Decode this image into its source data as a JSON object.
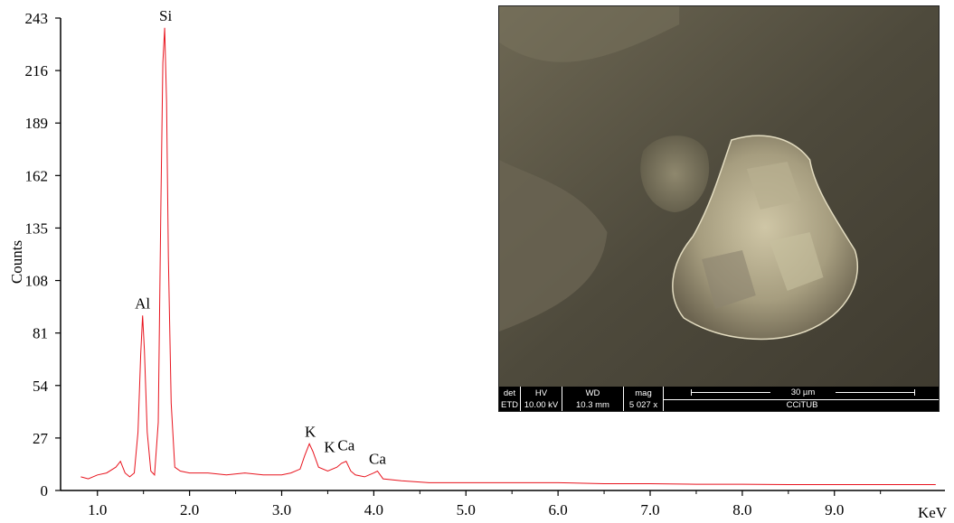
{
  "chart_data": {
    "type": "line",
    "title": "",
    "xlabel": "KeV",
    "ylabel": "Counts",
    "xlim": [
      0.6,
      10.2
    ],
    "ylim": [
      0,
      243
    ],
    "x_ticks": [
      1.0,
      2.0,
      3.0,
      4.0,
      5.0,
      6.0,
      7.0,
      8.0,
      9.0
    ],
    "x_tick_labels": [
      "1.0",
      "2.0",
      "3.0",
      "4.0",
      "5.0",
      "6.0",
      "7.0",
      "8.0",
      "9.0"
    ],
    "y_ticks": [
      0,
      27,
      54,
      81,
      108,
      135,
      162,
      189,
      216,
      243
    ],
    "y_tick_labels": [
      "0",
      "27",
      "54",
      "81",
      "108",
      "135",
      "162",
      "189",
      "216",
      "243"
    ],
    "grid": false,
    "series_color": "#e8141e",
    "series": [
      {
        "x": [
          0.82,
          0.9,
          1.0,
          1.1,
          1.2,
          1.25,
          1.3,
          1.35,
          1.4,
          1.44,
          1.47,
          1.49,
          1.51,
          1.54,
          1.58,
          1.62,
          1.66,
          1.69,
          1.71,
          1.73,
          1.75,
          1.77,
          1.8,
          1.84,
          1.9,
          2.0,
          2.2,
          2.4,
          2.6,
          2.8,
          3.0,
          3.1,
          3.2,
          3.25,
          3.3,
          3.34,
          3.4,
          3.5,
          3.6,
          3.65,
          3.7,
          3.75,
          3.8,
          3.9,
          4.0,
          4.04,
          4.1,
          4.3,
          4.6,
          5.0,
          5.5,
          6.0,
          6.5,
          7.0,
          7.5,
          8.0,
          8.5,
          9.0,
          9.5,
          10.0,
          10.1
        ],
        "y": [
          7,
          6,
          8,
          9,
          12,
          15,
          9,
          7,
          9,
          30,
          70,
          90,
          72,
          30,
          10,
          8,
          35,
          150,
          220,
          238,
          200,
          120,
          45,
          12,
          10,
          9,
          9,
          8,
          9,
          8,
          8,
          9,
          11,
          18,
          24,
          20,
          12,
          10,
          12,
          14,
          15,
          10,
          8,
          7,
          9,
          10,
          6,
          5,
          4,
          4,
          4,
          4,
          3.5,
          3.5,
          3.2,
          3.2,
          3,
          3,
          3,
          3,
          3
        ]
      }
    ],
    "annotations": [
      {
        "text": "Si",
        "x": 1.74,
        "y": 238
      },
      {
        "text": "Al",
        "x": 1.49,
        "y": 90
      },
      {
        "text": "K",
        "x": 3.31,
        "y": 24
      },
      {
        "text": "K",
        "x": 3.52,
        "y": 16
      },
      {
        "text": "Ca",
        "x": 3.7,
        "y": 17
      },
      {
        "text": "Ca",
        "x": 4.04,
        "y": 10
      }
    ]
  },
  "sem_micrograph": {
    "labels": {
      "det": "det",
      "hv": "HV",
      "wd": "WD",
      "mag": "mag"
    },
    "values": {
      "det": "ETD",
      "hv": "10.00 kV",
      "wd": "10.3 mm",
      "mag": "5 027 x"
    },
    "scale": "30 µm",
    "lab": "CCiTUB"
  }
}
